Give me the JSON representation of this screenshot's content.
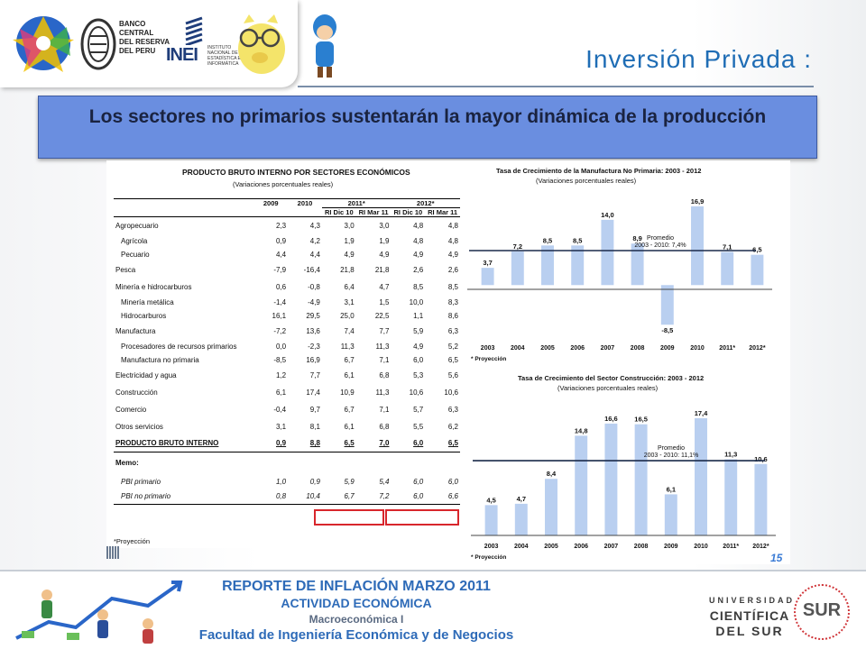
{
  "header": {
    "title": "Inversión Privada :",
    "logo_bcrp_lines": [
      "BANCO",
      "CENTRAL",
      "DEL RESERVA",
      "DEL PERU"
    ],
    "logo_inei": "INEI",
    "logo_inei_sub": [
      "INSTITUTO",
      "NACIONAL DE",
      "ESTADÍSTICA E",
      "INFORMÁTICA"
    ]
  },
  "banner": {
    "text": "Los sectores no primarios sustentarán la mayor dinámica de la producción"
  },
  "table": {
    "title": "PRODUCTO BRUTO INTERNO POR SECTORES ECONÓMICOS",
    "subtitle": "(Variaciones porcentuales reales)",
    "year_headers": [
      "2009",
      "2010",
      "2011*",
      "2012*"
    ],
    "sub_headers": [
      "RI Dic 10",
      "RI Mar 11",
      "RI Dic 10",
      "RI Mar 11"
    ],
    "rows": [
      {
        "label": "Agropecuario",
        "values": [
          "2,3",
          "4,3",
          "3,0",
          "3,0",
          "4,8",
          "4,8"
        ],
        "indent": false
      },
      {
        "label": "Agrícola",
        "values": [
          "0,9",
          "4,2",
          "1,9",
          "1,9",
          "4,8",
          "4,8"
        ],
        "indent": true
      },
      {
        "label": "Pecuario",
        "values": [
          "4,4",
          "4,4",
          "4,9",
          "4,9",
          "4,9",
          "4,9"
        ],
        "indent": true
      },
      {
        "label": "Pesca",
        "values": [
          "-7,9",
          "-16,4",
          "21,8",
          "21,8",
          "2,6",
          "2,6"
        ],
        "indent": false
      },
      {
        "label": "Minería e hidrocarburos",
        "values": [
          "0,6",
          "-0,8",
          "6,4",
          "4,7",
          "8,5",
          "8,5"
        ],
        "indent": false
      },
      {
        "label": "Minería metálica",
        "values": [
          "-1,4",
          "-4,9",
          "3,1",
          "1,5",
          "10,0",
          "8,3"
        ],
        "indent": true
      },
      {
        "label": "Hidrocarburos",
        "values": [
          "16,1",
          "29,5",
          "25,0",
          "22,5",
          "1,1",
          "8,6"
        ],
        "indent": true
      },
      {
        "label": "Manufactura",
        "values": [
          "-7,2",
          "13,6",
          "7,4",
          "7,7",
          "5,9",
          "6,3"
        ],
        "indent": false
      },
      {
        "label": "Procesadores de recursos primarios",
        "values": [
          "0,0",
          "-2,3",
          "11,3",
          "11,3",
          "4,9",
          "5,2"
        ],
        "indent": true
      },
      {
        "label": "Manufactura no primaria",
        "values": [
          "-8,5",
          "16,9",
          "6,7",
          "7,1",
          "6,0",
          "6,5"
        ],
        "indent": true
      },
      {
        "label": "Electricidad y agua",
        "values": [
          "1,2",
          "7,7",
          "6,1",
          "6,8",
          "5,3",
          "5,6"
        ],
        "indent": false
      },
      {
        "label": "Construcción",
        "values": [
          "6,1",
          "17,4",
          "10,9",
          "11,3",
          "10,6",
          "10,6"
        ],
        "indent": false
      },
      {
        "label": "Comercio",
        "values": [
          "-0,4",
          "9,7",
          "6,7",
          "7,1",
          "5,7",
          "6,3"
        ],
        "indent": false
      },
      {
        "label": "Otros servicios",
        "values": [
          "3,1",
          "8,1",
          "6,1",
          "6,8",
          "5,5",
          "6,2"
        ],
        "indent": false
      },
      {
        "label": "PRODUCTO BRUTO INTERNO",
        "values": [
          "0,9",
          "8,8",
          "6,5",
          "7,0",
          "6,0",
          "6,5"
        ],
        "indent": false,
        "bold": true
      }
    ],
    "memo_label": "Memo:",
    "memo_rows": [
      {
        "label": "PBI primario",
        "values": [
          "1,0",
          "0,9",
          "5,9",
          "5,4",
          "6,0",
          "6,0"
        ]
      },
      {
        "label": "PBI no primario",
        "values": [
          "0,8",
          "10,4",
          "6,7",
          "7,2",
          "6,0",
          "6,6"
        ]
      }
    ],
    "note": "*Proyección"
  },
  "chart_data": [
    {
      "type": "bar",
      "title": "Tasa de Crecimiento de la Manufactura No Primaria: 2003 - 2012",
      "subtitle": "(Variaciones porcentuales reales)",
      "categories": [
        "2003",
        "2004",
        "2005",
        "2006",
        "2007",
        "2008",
        "2009",
        "2010",
        "2011*",
        "2012*"
      ],
      "values": [
        3.7,
        7.2,
        8.5,
        8.5,
        14.0,
        8.9,
        -8.5,
        16.9,
        7.1,
        6.5
      ],
      "value_labels": [
        "3,7",
        "7,2",
        "8,5",
        "8,5",
        "14,0",
        "8,9",
        "-8,5",
        "16,9",
        "7,1",
        "6,5"
      ],
      "average_label": [
        "Promedio",
        "2003 - 2010: 7,4%"
      ],
      "average": 7.4,
      "ylim": [
        -10,
        19
      ],
      "note": "* Proyección",
      "bar_color": "#b9cff0"
    },
    {
      "type": "bar",
      "title": "Tasa de Crecimiento del Sector Construcción: 2003 - 2012",
      "subtitle": "(Variaciones porcentuales reales)",
      "categories": [
        "2003",
        "2004",
        "2005",
        "2006",
        "2007",
        "2008",
        "2009",
        "2010",
        "2011*",
        "2012*"
      ],
      "values": [
        4.5,
        4.7,
        8.4,
        14.8,
        16.6,
        16.5,
        6.1,
        17.4,
        11.3,
        10.6
      ],
      "value_labels": [
        "4,5",
        "4,7",
        "8,4",
        "14,8",
        "16,6",
        "16,5",
        "6,1",
        "17,4",
        "11,3",
        "10,6"
      ],
      "average_label": [
        "Promedio",
        "2003 - 2010: 11,1%"
      ],
      "average": 11.1,
      "ylim": [
        0,
        19
      ],
      "note": "* Proyección",
      "bar_color": "#b9cff0"
    }
  ],
  "page_number": "15",
  "footer": {
    "line1": "REPORTE DE INFLACIÓN MARZO 2011",
    "line2": "ACTIVIDAD ECONÓMICA",
    "line3": "Macroeconómica I",
    "line4": "Facultad de Ingeniería Económica y de Negocios",
    "univ1": "UNIVERSIDAD",
    "univ2": "CIENTÍFICA",
    "univ3": "DEL SUR",
    "seal": "SUR"
  }
}
